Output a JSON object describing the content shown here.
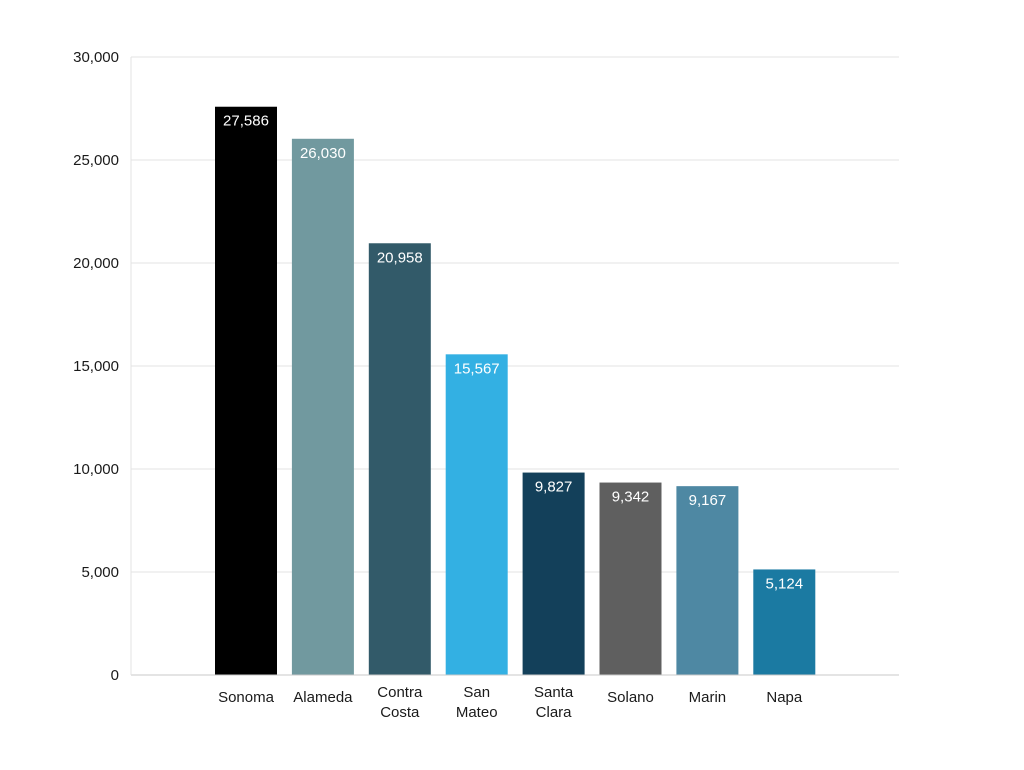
{
  "chart_data": {
    "type": "bar",
    "categories": [
      [
        "Sonoma"
      ],
      [
        "Alameda"
      ],
      [
        "Contra",
        "Costa"
      ],
      [
        "San",
        "Mateo"
      ],
      [
        "Santa",
        "Clara"
      ],
      [
        "Solano"
      ],
      [
        "Marin"
      ],
      [
        "Napa"
      ]
    ],
    "values": [
      27586,
      26030,
      20958,
      15567,
      9827,
      9342,
      9167,
      5124
    ],
    "value_labels": [
      "27,586",
      "26,030",
      "20,958",
      "15,567",
      "9,827",
      "9,342",
      "9,167",
      "5,124"
    ],
    "colors": [
      "#000000",
      "#71999f",
      "#325a69",
      "#33b0e3",
      "#13405a",
      "#5f5f5f",
      "#4e88a3",
      "#1b7aa2"
    ],
    "ylim": [
      0,
      30000
    ],
    "yticks": [
      0,
      5000,
      10000,
      15000,
      20000,
      25000,
      30000
    ],
    "ytick_labels": [
      "0",
      "5,000",
      "10,000",
      "15,000",
      "20,000",
      "25,000",
      "30,000"
    ],
    "grid": true,
    "title": "",
    "xlabel": "",
    "ylabel": ""
  }
}
